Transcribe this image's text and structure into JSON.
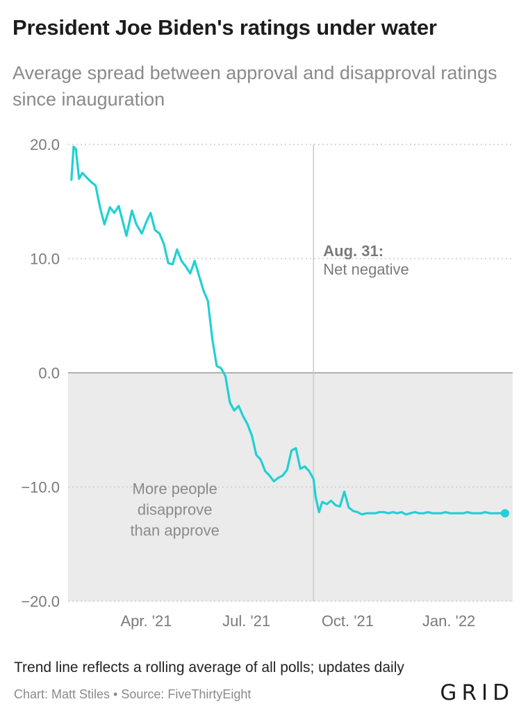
{
  "title": "President Joe Biden's ratings under water",
  "subtitle": "Average spread between approval and disapproval ratings since inauguration",
  "note": "Trend line reflects a rolling average of all polls; updates daily",
  "credit": "Chart: Matt Stiles • Source: FiveThirtyEight",
  "logo": "GRID",
  "colors": {
    "line": "#20d0d4",
    "shade": "#ebebeb",
    "zero_line": "#9a9a9a",
    "grid": "#c8c8c8",
    "marker_line": "#c9c9c9"
  },
  "chart_data": {
    "type": "line",
    "title": "President Joe Biden's ratings under water",
    "ylim": [
      -20,
      20
    ],
    "yticks": [
      "20.0",
      "10.0",
      "0.0",
      "−10.0",
      "−20.0"
    ],
    "ytick_values": [
      20,
      10,
      0,
      -10,
      -20
    ],
    "xlim": [
      "2021-01-20",
      "2022-02-28"
    ],
    "xticks": [
      {
        "label": "Apr. '21",
        "date": "2021-04-01"
      },
      {
        "label": "Jul. '21",
        "date": "2021-07-01"
      },
      {
        "label": "Oct. '21",
        "date": "2021-10-01"
      },
      {
        "label": "Jan. '22",
        "date": "2022-01-01"
      }
    ],
    "shaded_region": {
      "from": -20,
      "to": 0,
      "label_lines": [
        "More people",
        "disapprove",
        "than approve"
      ]
    },
    "annotation": {
      "date": "2021-08-31",
      "bold": "Aug. 31:",
      "text": "Net negative"
    },
    "series": [
      {
        "x": [
          "2021-01-23",
          "2021-01-25",
          "2021-01-27",
          "2021-01-30",
          "2021-02-02",
          "2021-02-05",
          "2021-02-10",
          "2021-02-14",
          "2021-02-18",
          "2021-02-22",
          "2021-02-27",
          "2021-03-03",
          "2021-03-07",
          "2021-03-10",
          "2021-03-14",
          "2021-03-19",
          "2021-03-23",
          "2021-03-28",
          "2021-04-01",
          "2021-04-05",
          "2021-04-09",
          "2021-04-13",
          "2021-04-17",
          "2021-04-21",
          "2021-04-25",
          "2021-04-29",
          "2021-05-03",
          "2021-05-07",
          "2021-05-11",
          "2021-05-15",
          "2021-05-19",
          "2021-05-23",
          "2021-05-27",
          "2021-05-31",
          "2021-06-04",
          "2021-06-08",
          "2021-06-12",
          "2021-06-16",
          "2021-06-20",
          "2021-06-24",
          "2021-06-28",
          "2021-07-02",
          "2021-07-06",
          "2021-07-10",
          "2021-07-14",
          "2021-07-18",
          "2021-07-22",
          "2021-07-26",
          "2021-07-30",
          "2021-08-03",
          "2021-08-07",
          "2021-08-11",
          "2021-08-15",
          "2021-08-19",
          "2021-08-23",
          "2021-08-27",
          "2021-08-31",
          "2021-09-02",
          "2021-09-05",
          "2021-09-08",
          "2021-09-12",
          "2021-09-16",
          "2021-09-20",
          "2021-09-24",
          "2021-09-28",
          "2021-10-02",
          "2021-10-06",
          "2021-10-10",
          "2021-10-14",
          "2021-10-18",
          "2021-10-22",
          "2021-10-26",
          "2021-10-30",
          "2021-11-03",
          "2021-11-07",
          "2021-11-11",
          "2021-11-15",
          "2021-11-19",
          "2021-11-23",
          "2021-11-27",
          "2021-12-01",
          "2021-12-05",
          "2021-12-09",
          "2021-12-13",
          "2021-12-17",
          "2021-12-21",
          "2021-12-25",
          "2021-12-29",
          "2022-01-02",
          "2022-01-06",
          "2022-01-10",
          "2022-01-14",
          "2022-01-18",
          "2022-01-22",
          "2022-01-26",
          "2022-01-30",
          "2022-02-03",
          "2022-02-07",
          "2022-02-11",
          "2022-02-15",
          "2022-02-19",
          "2022-02-21"
        ],
        "values": [
          16.9,
          19.8,
          19.6,
          17.0,
          17.5,
          17.2,
          16.7,
          16.4,
          14.5,
          13.0,
          14.5,
          14.0,
          14.6,
          13.5,
          12.0,
          14.2,
          13.0,
          12.2,
          13.2,
          14.0,
          12.5,
          12.2,
          11.3,
          9.6,
          9.5,
          10.8,
          9.8,
          9.3,
          8.7,
          9.8,
          8.5,
          7.2,
          6.3,
          3.0,
          0.6,
          0.4,
          -0.3,
          -2.6,
          -3.3,
          -2.9,
          -3.8,
          -4.5,
          -5.5,
          -7.2,
          -7.6,
          -8.6,
          -9.0,
          -9.5,
          -9.2,
          -9.0,
          -8.5,
          -6.8,
          -6.6,
          -8.4,
          -8.2,
          -8.6,
          -9.3,
          -10.9,
          -12.2,
          -11.3,
          -11.5,
          -11.2,
          -11.6,
          -11.7,
          -10.4,
          -11.8,
          -12.1,
          -12.2,
          -12.4,
          -12.3,
          -12.3,
          -12.3,
          -12.2,
          -12.2,
          -12.3,
          -12.2,
          -12.3,
          -12.2,
          -12.4,
          -12.3,
          -12.2,
          -12.3,
          -12.3,
          -12.2,
          -12.3,
          -12.3,
          -12.3,
          -12.2,
          -12.3,
          -12.3,
          -12.3,
          -12.3,
          -12.2,
          -12.3,
          -12.3,
          -12.3,
          -12.2,
          -12.3,
          -12.3,
          -12.3,
          -12.3,
          -12.3
        ]
      }
    ]
  }
}
